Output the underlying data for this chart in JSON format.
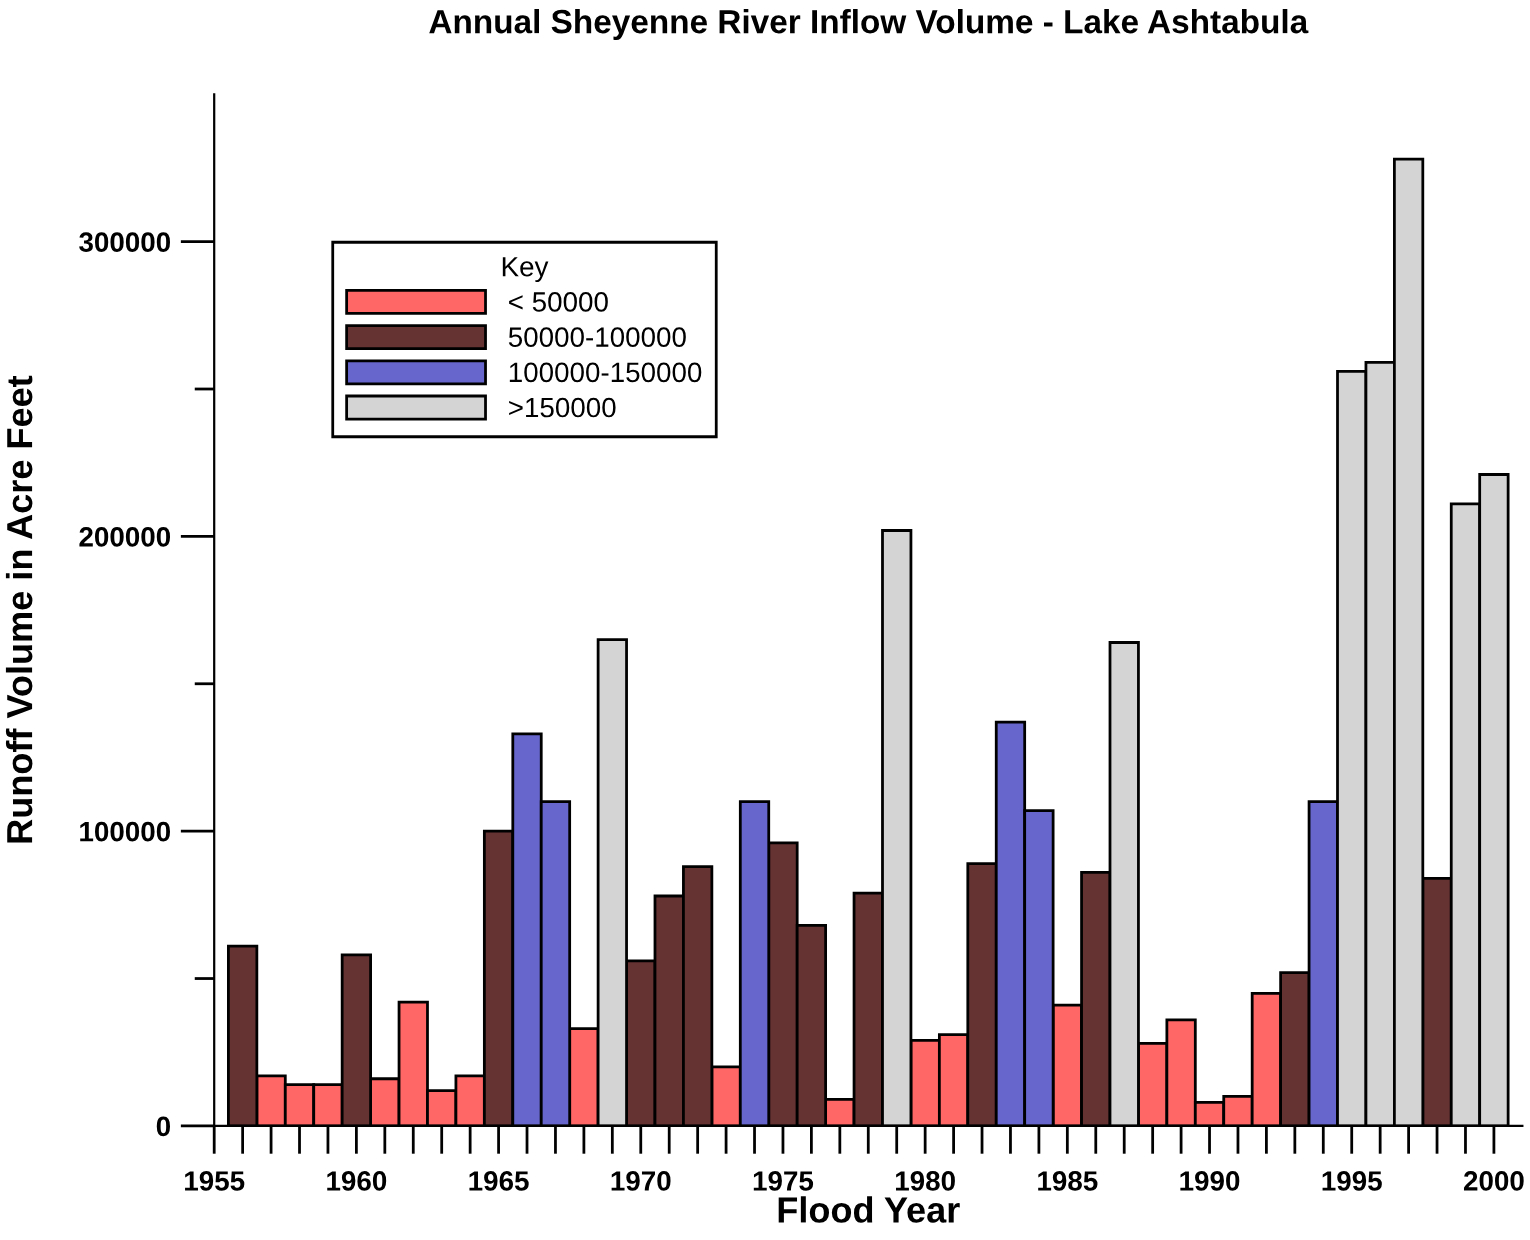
{
  "chart_data": {
    "type": "bar",
    "title": "Annual Sheyenne River Inflow Volume - Lake Ashtabula",
    "xlabel": "Flood Year",
    "ylabel": "Runoff Volume in Acre Feet",
    "legend_title": "Key",
    "legend": "top left",
    "grid": false,
    "xlim": [
      1955,
      2001
    ],
    "ylim": [
      0,
      350000
    ],
    "xticks": [
      1955,
      {
        "value": 1956,
        "label": null
      },
      {
        "value": 1957,
        "label": null
      },
      {
        "value": 1958,
        "label": null
      },
      {
        "value": 1959,
        "label": null
      },
      1960,
      {
        "value": 1961,
        "label": null
      },
      {
        "value": 1962,
        "label": null
      },
      {
        "value": 1963,
        "label": null
      },
      {
        "value": 1964,
        "label": null
      },
      1965,
      {
        "value": 1966,
        "label": null
      },
      {
        "value": 1967,
        "label": null
      },
      {
        "value": 1968,
        "label": null
      },
      {
        "value": 1969,
        "label": null
      },
      1970,
      {
        "value": 1971,
        "label": null
      },
      {
        "value": 1972,
        "label": null
      },
      {
        "value": 1973,
        "label": null
      },
      {
        "value": 1974,
        "label": null
      },
      1975,
      {
        "value": 1976,
        "label": null
      },
      {
        "value": 1977,
        "label": null
      },
      {
        "value": 1978,
        "label": null
      },
      {
        "value": 1979,
        "label": null
      },
      1980,
      {
        "value": 1981,
        "label": null
      },
      {
        "value": 1982,
        "label": null
      },
      {
        "value": 1983,
        "label": null
      },
      {
        "value": 1984,
        "label": null
      },
      1985,
      {
        "value": 1986,
        "label": null
      },
      {
        "value": 1987,
        "label": null
      },
      {
        "value": 1988,
        "label": null
      },
      {
        "value": 1989,
        "label": null
      },
      1990,
      {
        "value": 1991,
        "label": null
      },
      {
        "value": 1992,
        "label": null
      },
      {
        "value": 1993,
        "label": null
      },
      {
        "value": 1994,
        "label": null
      },
      1995,
      {
        "value": 1996,
        "label": null
      },
      {
        "value": 1997,
        "label": null
      },
      {
        "value": 1998,
        "label": null
      },
      {
        "value": 1999,
        "label": null
      },
      2000
    ],
    "yticks": [
      0,
      {
        "value": 50000,
        "label": null
      },
      100000,
      {
        "value": 150000,
        "label": null
      },
      200000,
      {
        "value": 250000,
        "label": null
      },
      300000
    ],
    "series": [
      {
        "name": "< 50000",
        "color": "#ff6666",
        "x": [
          1957,
          1958,
          1959,
          1961,
          1962,
          1963,
          1964,
          1968,
          1973,
          1977,
          1980,
          1981,
          1985,
          1988,
          1989,
          1990,
          1991,
          1992
        ],
        "values": [
          17000,
          14000,
          14000,
          16000,
          42000,
          12000,
          17000,
          33000,
          20000,
          9000,
          29000,
          31000,
          41000,
          28000,
          36000,
          8000,
          10000,
          45000
        ]
      },
      {
        "name": "50000-100000",
        "color": "#663333",
        "x": [
          1956,
          1960,
          1965,
          1970,
          1971,
          1972,
          1975,
          1976,
          1978,
          1982,
          1986,
          1993,
          1998
        ],
        "values": [
          61000,
          58000,
          100000,
          56000,
          78000,
          88000,
          96000,
          68000,
          79000,
          89000,
          86000,
          52000,
          84000
        ]
      },
      {
        "name": "100000-150000",
        "color": "#6666cc",
        "x": [
          1966,
          1967,
          1974,
          1983,
          1984,
          1994
        ],
        "values": [
          133000,
          110000,
          110000,
          137000,
          107000,
          110000
        ]
      },
      {
        "name": ">150000",
        "color": "#d4d4d4",
        "x": [
          1969,
          1979,
          1987,
          1995,
          1996,
          1997,
          1999,
          2000
        ],
        "values": [
          165000,
          202000,
          164000,
          256000,
          259000,
          328000,
          211000,
          221000
        ]
      }
    ]
  }
}
